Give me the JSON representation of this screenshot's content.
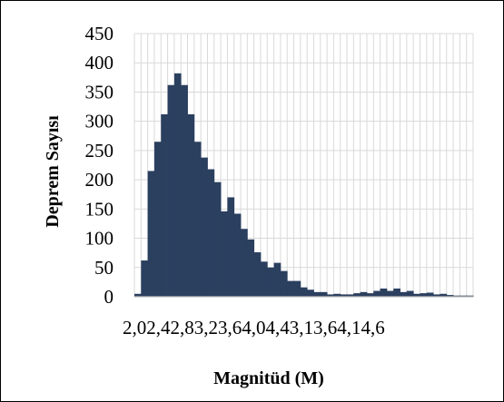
{
  "chart_data": {
    "type": "bar",
    "xlabel": "Magnitüd (M)",
    "ylabel": "Deprem Sayısı",
    "ylim": [
      0,
      450
    ],
    "yticks": [
      0,
      50,
      100,
      150,
      200,
      250,
      300,
      350,
      400,
      450
    ],
    "x_tick_text": "2,02,42,83,23,64,04,43,13,64,14,6",
    "grid": true,
    "legend": "none",
    "color": "#2b3f5f",
    "values": [
      5,
      62,
      215,
      265,
      312,
      362,
      382,
      362,
      312,
      265,
      238,
      218,
      196,
      146,
      170,
      142,
      116,
      98,
      76,
      60,
      50,
      58,
      44,
      27,
      27,
      16,
      12,
      8,
      8,
      4,
      5,
      4,
      4,
      6,
      8,
      6,
      10,
      14,
      10,
      14,
      8,
      10,
      5,
      6,
      7,
      4,
      5,
      3,
      2,
      2,
      2
    ]
  }
}
